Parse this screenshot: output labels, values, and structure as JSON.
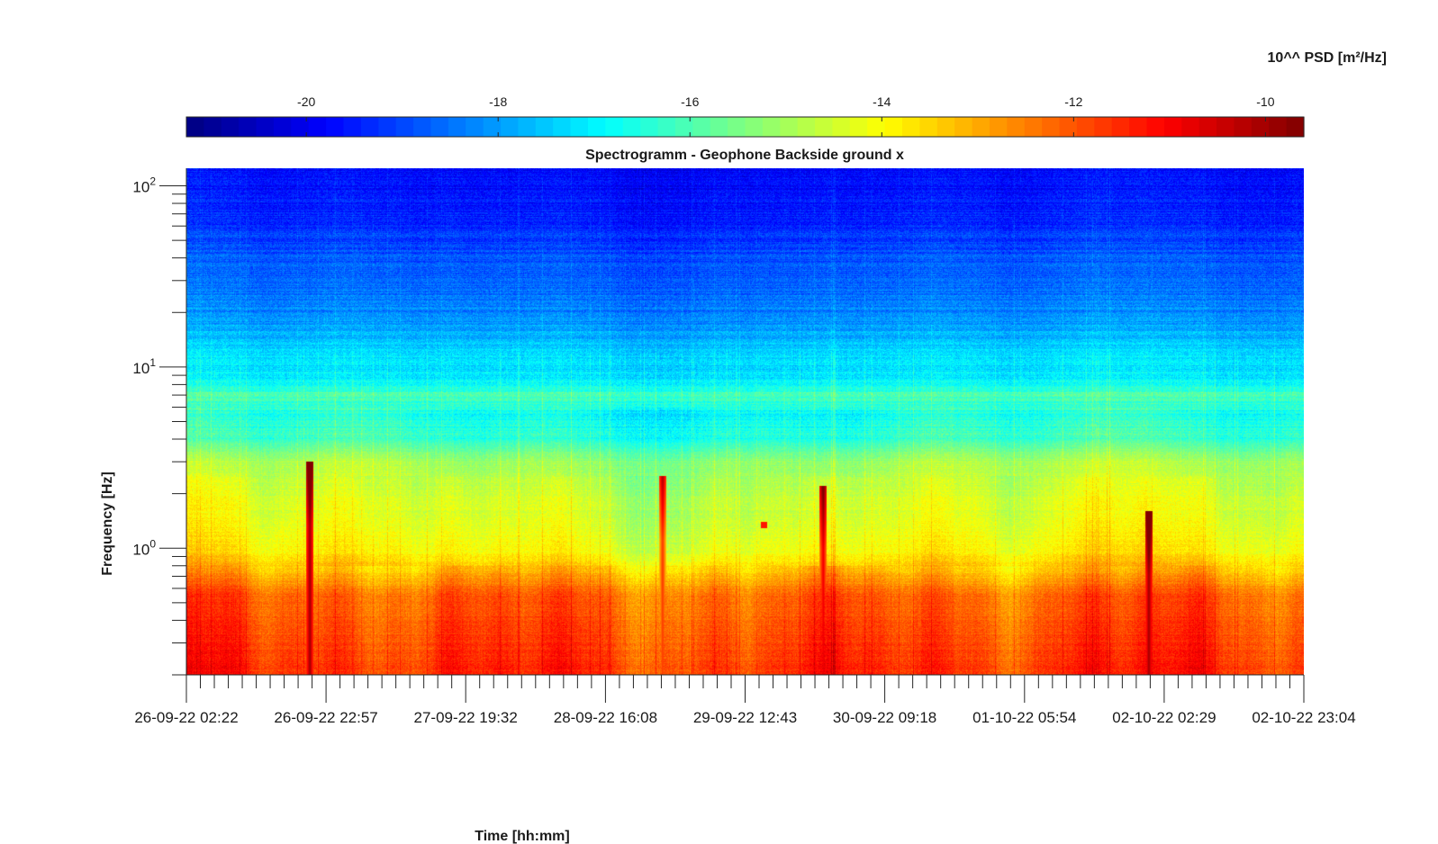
{
  "chart_data": {
    "type": "heatmap",
    "title": "Spectrogramm - Geophone Backside ground x",
    "xlabel": "Time [hh:mm]",
    "ylabel": "Frequency [Hz]",
    "colorbar_label": "10^^ PSD [m²/Hz]",
    "colormap": "jet",
    "color_range": [
      -21.25,
      -9.6
    ],
    "colorbar_ticks": [
      "-20",
      "-18",
      "-16",
      "-14",
      "-12",
      "-10"
    ],
    "colorbar_tick_values": [
      -20,
      -18,
      -16,
      -14,
      -12,
      -10
    ],
    "x_tick_labels": [
      "26-09-22 02:22",
      "26-09-22 22:57",
      "27-09-22 19:32",
      "28-09-22 16:08",
      "29-09-22 12:43",
      "30-09-22 09:18",
      "01-10-22 05:54",
      "02-10-22 02:29",
      "02-10-22 23:04"
    ],
    "x_range": [
      "26-09-22 02:22",
      "02-10-22 23:04"
    ],
    "y_scale": "log",
    "y_range": [
      0.2,
      125
    ],
    "y_tick_labels": [
      {
        "base": "10",
        "exp": "0",
        "value": 1
      },
      {
        "base": "10",
        "exp": "1",
        "value": 10
      },
      {
        "base": "10",
        "exp": "2",
        "value": 100
      }
    ],
    "profile_freqs": [
      0.2,
      0.35,
      0.55,
      0.72,
      0.95,
      1.3,
      2.0,
      3.0,
      4.0,
      5.5,
      7.0,
      8.5,
      12,
      20,
      40,
      70,
      125
    ],
    "profile_levels": [
      -11.6,
      -11.9,
      -12.2,
      -13.1,
      -14.0,
      -14.3,
      -14.6,
      -15.1,
      -16.3,
      -16.7,
      -16.0,
      -17.1,
      -17.4,
      -18.3,
      -18.9,
      -19.5,
      -19.8
    ],
    "events": [
      {
        "x": "26-09-22 20:30",
        "top_freq": 3.0,
        "level": -9.9
      },
      {
        "x": "29-09-22 00:30",
        "top_freq": 2.5,
        "level": -11.6
      },
      {
        "x": "30-09-22 00:10",
        "top_freq": 2.2,
        "level": -10.8
      },
      {
        "x": "02-10-22 00:10",
        "top_freq": 1.6,
        "level": -9.9
      }
    ],
    "marker": {
      "x": "29-09-22 15:30",
      "freq": 1.35,
      "level": -11.3
    },
    "grid": false
  }
}
